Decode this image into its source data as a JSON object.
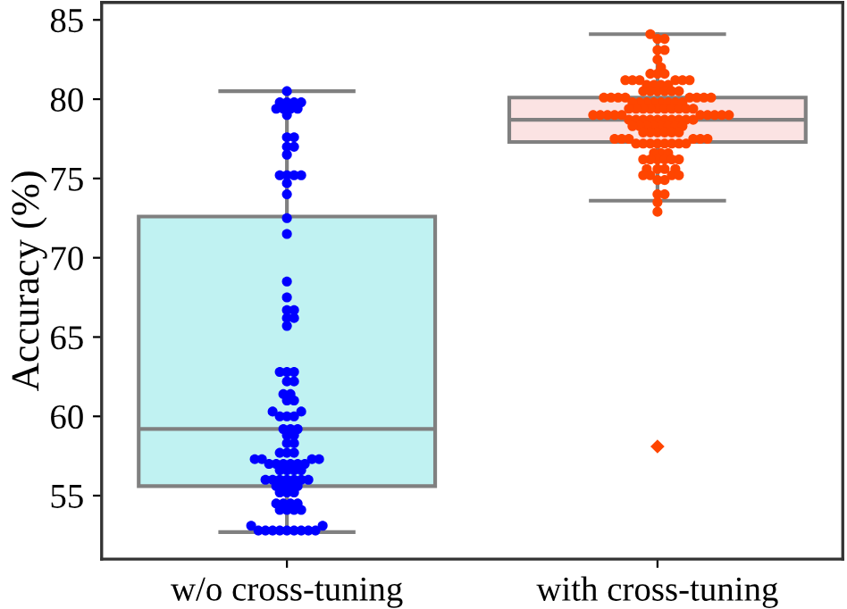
{
  "chart_data": {
    "type": "box",
    "categories": [
      "w/o cross-tuning",
      "with cross-tuning"
    ],
    "ylabel": "Accuracy (%)",
    "ylim": [
      51,
      86.1
    ],
    "yticks": [
      55,
      60,
      65,
      70,
      75,
      80,
      85
    ],
    "colors": [
      "#c0f2f2",
      "#fbe3e3"
    ],
    "boxes": [
      {
        "low": 52.7,
        "q1": 55.6,
        "median": 59.2,
        "q3": 72.6,
        "high": 80.5
      },
      {
        "low": 73.6,
        "q1": 77.3,
        "median": 78.7,
        "q3": 80.1,
        "high": 84.1,
        "outliers": [
          58.1
        ]
      }
    ],
    "series": [
      {
        "type": "scatter",
        "color": "#0000ff",
        "x": [
          "w/o cross-tuning",
          "w/o cross-tuning",
          "w/o cross-tuning",
          "w/o cross-tuning",
          "w/o cross-tuning",
          "w/o cross-tuning",
          "w/o cross-tuning",
          "w/o cross-tuning",
          "w/o cross-tuning",
          "w/o cross-tuning",
          "w/o cross-tuning",
          "w/o cross-tuning",
          "w/o cross-tuning",
          "w/o cross-tuning",
          "w/o cross-tuning",
          "w/o cross-tuning",
          "w/o cross-tuning",
          "w/o cross-tuning",
          "w/o cross-tuning",
          "w/o cross-tuning",
          "w/o cross-tuning",
          "w/o cross-tuning",
          "w/o cross-tuning",
          "w/o cross-tuning",
          "w/o cross-tuning",
          "w/o cross-tuning",
          "w/o cross-tuning",
          "w/o cross-tuning",
          "w/o cross-tuning",
          "w/o cross-tuning",
          "w/o cross-tuning",
          "w/o cross-tuning",
          "w/o cross-tuning",
          "w/o cross-tuning",
          "w/o cross-tuning",
          "w/o cross-tuning",
          "w/o cross-tuning",
          "w/o cross-tuning",
          "w/o cross-tuning",
          "w/o cross-tuning",
          "w/o cross-tuning",
          "w/o cross-tuning",
          "w/o cross-tuning",
          "w/o cross-tuning",
          "w/o cross-tuning",
          "w/o cross-tuning",
          "w/o cross-tuning",
          "w/o cross-tuning",
          "w/o cross-tuning",
          "w/o cross-tuning",
          "w/o cross-tuning",
          "w/o cross-tuning",
          "w/o cross-tuning",
          "w/o cross-tuning",
          "w/o cross-tuning",
          "w/o cross-tuning",
          "w/o cross-tuning",
          "w/o cross-tuning",
          "w/o cross-tuning",
          "w/o cross-tuning",
          "w/o cross-tuning",
          "w/o cross-tuning",
          "w/o cross-tuning",
          "w/o cross-tuning",
          "w/o cross-tuning",
          "w/o cross-tuning",
          "w/o cross-tuning",
          "w/o cross-tuning",
          "w/o cross-tuning",
          "w/o cross-tuning",
          "w/o cross-tuning",
          "w/o cross-tuning",
          "w/o cross-tuning",
          "w/o cross-tuning",
          "w/o cross-tuning",
          "w/o cross-tuning",
          "w/o cross-tuning",
          "w/o cross-tuning",
          "w/o cross-tuning",
          "w/o cross-tuning",
          "w/o cross-tuning",
          "w/o cross-tuning",
          "w/o cross-tuning",
          "w/o cross-tuning",
          "w/o cross-tuning",
          "w/o cross-tuning",
          "w/o cross-tuning",
          "w/o cross-tuning",
          "w/o cross-tuning",
          "w/o cross-tuning",
          "w/o cross-tuning",
          "w/o cross-tuning",
          "w/o cross-tuning",
          "w/o cross-tuning",
          "w/o cross-tuning",
          "w/o cross-tuning",
          "w/o cross-tuning",
          "w/o cross-tuning",
          "w/o cross-tuning",
          "w/o cross-tuning",
          "w/o cross-tuning"
        ],
        "values": [
          80.5,
          79.8,
          79.8,
          79.8,
          79.8,
          79.4,
          79.4,
          79.4,
          79.4,
          79.0,
          77.6,
          77.6,
          77.0,
          77.0,
          76.5,
          75.2,
          75.2,
          75.2,
          75.2,
          74.7,
          74.0,
          72.5,
          71.5,
          68.5,
          67.5,
          66.7,
          66.7,
          66.2,
          66.2,
          65.7,
          62.8,
          62.8,
          62.8,
          62.2,
          62.2,
          61.4,
          61.4,
          61.0,
          61.0,
          60.3,
          60.3,
          60.0,
          60.0,
          60.0,
          59.2,
          59.2,
          59.2,
          58.8,
          58.8,
          58.3,
          58.3,
          57.7,
          57.7,
          57.7,
          57.3,
          57.3,
          57.3,
          57.3,
          57.0,
          57.0,
          57.0,
          57.0,
          57.0,
          57.0,
          56.6,
          56.6,
          56.6,
          56.6,
          56.0,
          56.0,
          56.0,
          56.0,
          56.0,
          56.0,
          56.0,
          55.6,
          55.6,
          55.6,
          55.6,
          55.2,
          55.2,
          55.2,
          54.5,
          54.5,
          54.5,
          54.5,
          54.1,
          54.1,
          54.1,
          54.1,
          53.1,
          53.1,
          52.8,
          52.8,
          52.8,
          52.8,
          52.8,
          52.8,
          52.8,
          52.8,
          52.8
        ]
      },
      {
        "type": "scatter",
        "color": "#ff4500",
        "x": [
          "with cross-tuning",
          "with cross-tuning",
          "with cross-tuning",
          "with cross-tuning",
          "with cross-tuning",
          "with cross-tuning",
          "with cross-tuning",
          "with cross-tuning",
          "with cross-tuning",
          "with cross-tuning",
          "with cross-tuning",
          "with cross-tuning",
          "with cross-tuning",
          "with cross-tuning",
          "with cross-tuning",
          "with cross-tuning",
          "with cross-tuning",
          "with cross-tuning",
          "with cross-tuning",
          "with cross-tuning",
          "with cross-tuning",
          "with cross-tuning",
          "with cross-tuning",
          "with cross-tuning",
          "with cross-tuning",
          "with cross-tuning",
          "with cross-tuning",
          "with cross-tuning",
          "with cross-tuning",
          "with cross-tuning",
          "with cross-tuning",
          "with cross-tuning",
          "with cross-tuning",
          "with cross-tuning",
          "with cross-tuning",
          "with cross-tuning",
          "with cross-tuning",
          "with cross-tuning",
          "with cross-tuning",
          "with cross-tuning",
          "with cross-tuning",
          "with cross-tuning",
          "with cross-tuning",
          "with cross-tuning",
          "with cross-tuning",
          "with cross-tuning",
          "with cross-tuning",
          "with cross-tuning",
          "with cross-tuning",
          "with cross-tuning",
          "with cross-tuning",
          "with cross-tuning",
          "with cross-tuning",
          "with cross-tuning",
          "with cross-tuning",
          "with cross-tuning",
          "with cross-tuning",
          "with cross-tuning",
          "with cross-tuning",
          "with cross-tuning",
          "with cross-tuning",
          "with cross-tuning",
          "with cross-tuning",
          "with cross-tuning",
          "with cross-tuning",
          "with cross-tuning",
          "with cross-tuning",
          "with cross-tuning",
          "with cross-tuning",
          "with cross-tuning",
          "with cross-tuning",
          "with cross-tuning",
          "with cross-tuning",
          "with cross-tuning",
          "with cross-tuning",
          "with cross-tuning",
          "with cross-tuning",
          "with cross-tuning",
          "with cross-tuning",
          "with cross-tuning",
          "with cross-tuning",
          "with cross-tuning",
          "with cross-tuning",
          "with cross-tuning",
          "with cross-tuning",
          "with cross-tuning",
          "with cross-tuning",
          "with cross-tuning",
          "with cross-tuning",
          "with cross-tuning",
          "with cross-tuning",
          "with cross-tuning",
          "with cross-tuning",
          "with cross-tuning",
          "with cross-tuning",
          "with cross-tuning",
          "with cross-tuning",
          "with cross-tuning",
          "with cross-tuning",
          "with cross-tuning",
          "with cross-tuning",
          "with cross-tuning",
          "with cross-tuning",
          "with cross-tuning",
          "with cross-tuning",
          "with cross-tuning",
          "with cross-tuning",
          "with cross-tuning",
          "with cross-tuning",
          "with cross-tuning",
          "with cross-tuning",
          "with cross-tuning",
          "with cross-tuning",
          "with cross-tuning",
          "with cross-tuning",
          "with cross-tuning",
          "with cross-tuning",
          "with cross-tuning",
          "with cross-tuning",
          "with cross-tuning",
          "with cross-tuning",
          "with cross-tuning",
          "with cross-tuning"
        ],
        "values": [
          84.1,
          83.8,
          83.8,
          83.1,
          83.1,
          82.5,
          82.0,
          81.6,
          81.6,
          81.6,
          81.2,
          81.2,
          81.2,
          81.2,
          81.2,
          81.2,
          80.9,
          80.9,
          80.9,
          80.9,
          80.5,
          80.5,
          80.5,
          80.5,
          80.5,
          80.5,
          80.1,
          80.1,
          80.1,
          80.1,
          80.1,
          80.1,
          80.1,
          80.1,
          79.8,
          79.8,
          79.8,
          79.8,
          79.8,
          79.8,
          79.8,
          79.8,
          79.4,
          79.4,
          79.4,
          79.4,
          79.4,
          79.4,
          79.4,
          79.4,
          79.4,
          79.4,
          79.0,
          79.0,
          79.0,
          79.0,
          79.0,
          79.0,
          79.0,
          79.0,
          79.0,
          79.0,
          78.7,
          78.7,
          78.7,
          78.7,
          78.7,
          78.7,
          78.7,
          78.7,
          78.7,
          78.7,
          78.3,
          78.3,
          78.3,
          78.3,
          78.3,
          78.3,
          78.3,
          78.3,
          77.9,
          77.9,
          77.9,
          77.9,
          77.9,
          77.9,
          77.5,
          77.5,
          77.5,
          77.5,
          77.5,
          77.5,
          77.2,
          77.2,
          77.2,
          77.2,
          77.2,
          77.2,
          77.2,
          77.2,
          76.6,
          76.6,
          76.6,
          76.2,
          76.2,
          76.2,
          76.2,
          76.2,
          76.2,
          75.6,
          75.6,
          75.6,
          75.6,
          75.2,
          75.2,
          75.2,
          75.2,
          74.9,
          74.9,
          74.0,
          74.0,
          73.5,
          72.9
        ]
      }
    ]
  }
}
